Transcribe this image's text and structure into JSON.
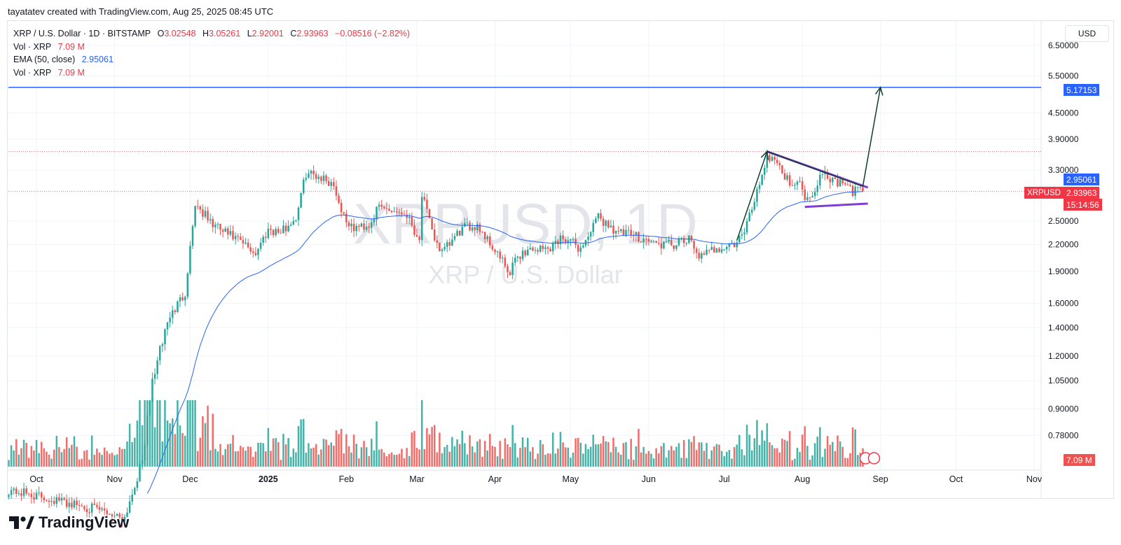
{
  "attribution": "tayatatev created with TradingView.com, Aug 25, 2025 08:45 UTC",
  "legend": {
    "symbol_line": "XRP / U.S. Dollar · 1D · BITSTAMP",
    "o_label": "O",
    "o_value": "3.02548",
    "h_label": "H",
    "h_value": "3.05261",
    "l_label": "L",
    "l_value": "2.92001",
    "c_label": "C",
    "c_value": "2.93963",
    "change": "−0.08516 (−2.82%)",
    "vol_label": "Vol · XRP",
    "vol_value": "7.09 M",
    "ema_label": "EMA (50, close)",
    "ema_value": "2.95061",
    "vol2_label": "Vol · XRP",
    "vol2_value": "7.09 M"
  },
  "currency": "USD",
  "watermark": {
    "symbol": "XRPUSD, 1D",
    "name": "XRP / U.S. Dollar"
  },
  "tags": {
    "target": "5.17153",
    "ema": "2.95061",
    "symbol": "XRPUSD",
    "price": "2.93963",
    "countdown": "15:14:56",
    "volume": "7.09 M"
  },
  "footer_logo": "TradingView",
  "colors": {
    "up": "#26a69a",
    "down": "#ef5350",
    "ema": "#2962ff",
    "target": "#2962ff",
    "pattern": "#7e3fd1",
    "arrow": "#0f3d2e"
  },
  "chart_data": {
    "type": "candlestick",
    "scale": "log",
    "y_ticks": [
      "6.50000",
      "5.50000",
      "4.50000",
      "3.90000",
      "3.30000",
      "2.50000",
      "2.20000",
      "1.90000",
      "1.60000",
      "1.40000",
      "1.20000",
      "1.05000",
      "0.90000",
      "0.78000"
    ],
    "x_ticks": [
      "Oct",
      "Nov",
      "Dec",
      "2025",
      "Feb",
      "Mar",
      "Apr",
      "May",
      "Jun",
      "Jul",
      "Aug",
      "Sep",
      "Oct",
      "Nov"
    ],
    "price_range": [
      0.72,
      7.0
    ],
    "start_date": "2024-09-20",
    "anchors": [
      [
        "2024-09-20",
        0.58
      ],
      [
        "2024-10-20",
        0.53
      ],
      [
        "2024-11-05",
        0.5
      ],
      [
        "2024-11-12",
        0.68
      ],
      [
        "2024-11-16",
        1.05
      ],
      [
        "2024-11-22",
        1.45
      ],
      [
        "2024-11-29",
        1.7
      ],
      [
        "2024-12-02",
        2.45
      ],
      [
        "2024-12-03",
        2.75
      ],
      [
        "2024-12-10",
        2.45
      ],
      [
        "2024-12-20",
        2.25
      ],
      [
        "2024-12-27",
        2.1
      ],
      [
        "2025-01-01",
        2.4
      ],
      [
        "2025-01-06",
        2.35
      ],
      [
        "2025-01-12",
        2.55
      ],
      [
        "2025-01-16",
        3.25
      ],
      [
        "2025-01-21",
        3.2
      ],
      [
        "2025-01-27",
        3.05
      ],
      [
        "2025-01-30",
        2.65
      ],
      [
        "2025-02-03",
        2.4
      ],
      [
        "2025-02-10",
        2.45
      ],
      [
        "2025-02-14",
        2.7
      ],
      [
        "2025-02-20",
        2.65
      ],
      [
        "2025-02-25",
        2.6
      ],
      [
        "2025-03-02",
        2.25
      ],
      [
        "2025-03-03",
        2.9
      ],
      [
        "2025-03-07",
        2.35
      ],
      [
        "2025-03-11",
        2.1
      ],
      [
        "2025-03-19",
        2.4
      ],
      [
        "2025-03-25",
        2.45
      ],
      [
        "2025-04-03",
        2.05
      ],
      [
        "2025-04-07",
        1.85
      ],
      [
        "2025-04-09",
        2.05
      ],
      [
        "2025-04-15",
        2.15
      ],
      [
        "2025-04-22",
        2.15
      ],
      [
        "2025-04-28",
        2.3
      ],
      [
        "2025-05-05",
        2.15
      ],
      [
        "2025-05-12",
        2.55
      ],
      [
        "2025-05-20",
        2.35
      ],
      [
        "2025-05-28",
        2.3
      ],
      [
        "2025-06-05",
        2.2
      ],
      [
        "2025-06-12",
        2.2
      ],
      [
        "2025-06-17",
        2.25
      ],
      [
        "2025-06-22",
        2.05
      ],
      [
        "2025-06-27",
        2.15
      ],
      [
        "2025-07-05",
        2.2
      ],
      [
        "2025-07-09",
        2.35
      ],
      [
        "2025-07-14",
        2.95
      ],
      [
        "2025-07-18",
        3.55
      ],
      [
        "2025-07-22",
        3.5
      ],
      [
        "2025-07-25",
        3.15
      ],
      [
        "2025-07-31",
        3.05
      ],
      [
        "2025-08-03",
        2.8
      ],
      [
        "2025-08-07",
        3.05
      ],
      [
        "2025-08-08",
        3.3
      ],
      [
        "2025-08-14",
        3.1
      ],
      [
        "2025-08-18",
        3.05
      ],
      [
        "2025-08-21",
        2.9
      ],
      [
        "2025-08-23",
        3.05
      ],
      [
        "2025-08-25",
        2.94
      ]
    ],
    "ema_label": "EMA (50, close)",
    "target_price": 5.17153,
    "resistance_level": 3.65,
    "pattern": {
      "upper": [
        [
          "2025-07-18",
          3.65
        ],
        [
          "2025-08-27",
          3.0
        ]
      ],
      "lower": [
        [
          "2025-08-02",
          2.7
        ],
        [
          "2025-08-27",
          2.75
        ]
      ]
    },
    "projection": [
      [
        "2025-07-06",
        2.25
      ],
      [
        "2025-07-18",
        3.65
      ],
      [
        "2025-08-25",
        3.02
      ],
      [
        "2025-09-01",
        5.17153
      ]
    ]
  }
}
